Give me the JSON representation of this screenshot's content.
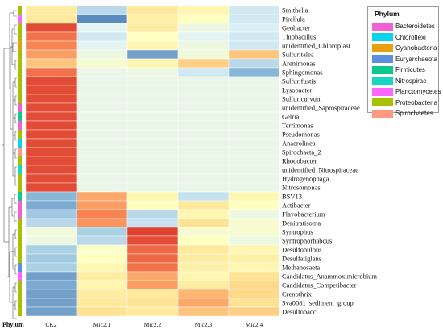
{
  "chart_data": {
    "type": "heatmap",
    "x_axis_label": "Phylum",
    "columns": [
      "CK2",
      "Mic2.1",
      "Mic2.2",
      "Mic2.3",
      "Mic2.4"
    ],
    "rows": [
      {
        "genus": "Smithella",
        "phylum": "Proteobacteria",
        "values": [
          0.6,
          0.25,
          0.62,
          0.55,
          0.3
        ]
      },
      {
        "genus": "Pirellula",
        "phylum": "Planctomycetes",
        "values": [
          0.62,
          0.05,
          0.58,
          0.5,
          0.3
        ]
      },
      {
        "genus": "Geobacter",
        "phylum": "Proteobacteria",
        "values": [
          0.95,
          0.35,
          0.6,
          0.4,
          0.32
        ]
      },
      {
        "genus": "Thiobacillus",
        "phylum": "Proteobacteria",
        "values": [
          0.88,
          0.3,
          0.5,
          0.35,
          0.3
        ]
      },
      {
        "genus": "unidentified_Chloroplast",
        "phylum": "Cyanobacteria",
        "values": [
          0.85,
          0.35,
          0.55,
          0.4,
          0.3
        ]
      },
      {
        "genus": "Sulfuritalea",
        "phylum": "Proteobacteria",
        "values": [
          0.8,
          0.4,
          0.1,
          0.42,
          0.72
        ]
      },
      {
        "genus": "Arenimonas",
        "phylum": "Proteobacteria",
        "values": [
          0.72,
          0.45,
          0.55,
          0.7,
          0.25
        ]
      },
      {
        "genus": "Sphingomonas",
        "phylum": "Proteobacteria",
        "values": [
          0.88,
          0.38,
          0.4,
          0.3,
          0.15
        ]
      },
      {
        "genus": "Sulfurifustis",
        "phylum": "Proteobacteria",
        "values": [
          0.95,
          0.38,
          0.38,
          0.38,
          0.38
        ]
      },
      {
        "genus": "Lysobacter",
        "phylum": "Proteobacteria",
        "values": [
          0.95,
          0.38,
          0.38,
          0.38,
          0.38
        ]
      },
      {
        "genus": "Sulfuricurvum",
        "phylum": "Proteobacteria",
        "values": [
          0.95,
          0.38,
          0.38,
          0.38,
          0.38
        ]
      },
      {
        "genus": "unidentified_Saprospiraceae",
        "phylum": "Bacteroidetes",
        "values": [
          0.95,
          0.38,
          0.38,
          0.38,
          0.38
        ]
      },
      {
        "genus": "Gelria",
        "phylum": "Firmicutes",
        "values": [
          0.95,
          0.38,
          0.38,
          0.38,
          0.38
        ]
      },
      {
        "genus": "Terrimonas",
        "phylum": "Bacteroidetes",
        "values": [
          0.95,
          0.38,
          0.38,
          0.38,
          0.38
        ]
      },
      {
        "genus": "Pseudomonas",
        "phylum": "Proteobacteria",
        "values": [
          0.95,
          0.38,
          0.38,
          0.38,
          0.38
        ]
      },
      {
        "genus": "Anaerolinea",
        "phylum": "Chloroflexi",
        "values": [
          0.95,
          0.38,
          0.38,
          0.38,
          0.38
        ]
      },
      {
        "genus": "Spirochaeta_2",
        "phylum": "Spirochaetes",
        "values": [
          0.95,
          0.38,
          0.38,
          0.38,
          0.38
        ]
      },
      {
        "genus": "Rhodobacter",
        "phylum": "Proteobacteria",
        "values": [
          0.95,
          0.38,
          0.38,
          0.38,
          0.38
        ]
      },
      {
        "genus": "unidentified_Nitrospiraceae",
        "phylum": "Nitrospirae",
        "values": [
          0.95,
          0.38,
          0.38,
          0.38,
          0.38
        ]
      },
      {
        "genus": "Hydrogenophaga",
        "phylum": "Proteobacteria",
        "values": [
          0.95,
          0.38,
          0.38,
          0.38,
          0.38
        ]
      },
      {
        "genus": "Nitrosomonas",
        "phylum": "Proteobacteria",
        "values": [
          0.95,
          0.38,
          0.38,
          0.38,
          0.38
        ]
      },
      {
        "genus": "BSV13",
        "phylum": "Firmicutes",
        "values": [
          0.15,
          0.78,
          0.55,
          0.28,
          0.55
        ]
      },
      {
        "genus": "Actibacter",
        "phylum": "Bacteroidetes",
        "values": [
          0.12,
          0.8,
          0.5,
          0.62,
          0.5
        ]
      },
      {
        "genus": "Flavobacterium",
        "phylum": "Bacteroidetes",
        "values": [
          0.2,
          0.85,
          0.25,
          0.55,
          0.4
        ]
      },
      {
        "genus": "Denitratisoma",
        "phylum": "Proteobacteria",
        "values": [
          0.25,
          0.82,
          0.28,
          0.65,
          0.45
        ]
      },
      {
        "genus": "Syntrophus",
        "phylum": "Proteobacteria",
        "values": [
          0.42,
          0.22,
          0.97,
          0.45,
          0.45
        ]
      },
      {
        "genus": "Syntrophorhabdus",
        "phylum": "Proteobacteria",
        "values": [
          0.4,
          0.25,
          0.95,
          0.5,
          0.4
        ]
      },
      {
        "genus": "Desulfobulbus",
        "phylum": "Proteobacteria",
        "values": [
          0.22,
          0.48,
          0.9,
          0.62,
          0.55
        ]
      },
      {
        "genus": "Desulfatiglans",
        "phylum": "Proteobacteria",
        "values": [
          0.2,
          0.5,
          0.9,
          0.6,
          0.58
        ]
      },
      {
        "genus": "Methanosaeta",
        "phylum": "Euryarchaeota",
        "values": [
          0.22,
          0.55,
          0.88,
          0.58,
          0.55
        ]
      },
      {
        "genus": "Candidatus_Anammoximicrobium",
        "phylum": "Planctomycetes",
        "values": [
          0.1,
          0.6,
          0.78,
          0.55,
          0.65
        ]
      },
      {
        "genus": "Candidatus_Competibacter",
        "phylum": "Proteobacteria",
        "values": [
          0.12,
          0.55,
          0.8,
          0.6,
          0.68
        ]
      },
      {
        "genus": "Crenothrix",
        "phylum": "Proteobacteria",
        "values": [
          0.1,
          0.6,
          0.62,
          0.75,
          0.68
        ]
      },
      {
        "genus": "Sva0081_sediment_group",
        "phylum": "Proteobacteria",
        "values": [
          0.1,
          0.62,
          0.65,
          0.78,
          0.65
        ]
      },
      {
        "genus": "Desulfobacc",
        "phylum": "Proteobacteria",
        "values": [
          0.1,
          0.65,
          0.62,
          0.72,
          0.7
        ]
      }
    ],
    "color_scale": [
      "#4575b4",
      "#91bfdb",
      "#e0f3f8",
      "#ffffbf",
      "#fee090",
      "#fc8d59",
      "#d73027"
    ],
    "value_range": [
      0,
      1
    ],
    "legend": {
      "title": "Phylum",
      "position": "top-right",
      "items": [
        {
          "label": "Bacteroidetes",
          "color": "#f062d2"
        },
        {
          "label": "Chloroflexi",
          "color": "#0cd3ea"
        },
        {
          "label": "Cyanobacteria",
          "color": "#e8a010"
        },
        {
          "label": "Euryarchaeota",
          "color": "#5b8fe0"
        },
        {
          "label": "Firmicutes",
          "color": "#0dc98a"
        },
        {
          "label": "Nitrospirae",
          "color": "#18d7c2"
        },
        {
          "label": "Planctomycetes",
          "color": "#ff66ff"
        },
        {
          "label": "Proteobacteria",
          "color": "#a9c000"
        },
        {
          "label": "Spirochaetes",
          "color": "#ff9a80"
        }
      ]
    }
  }
}
